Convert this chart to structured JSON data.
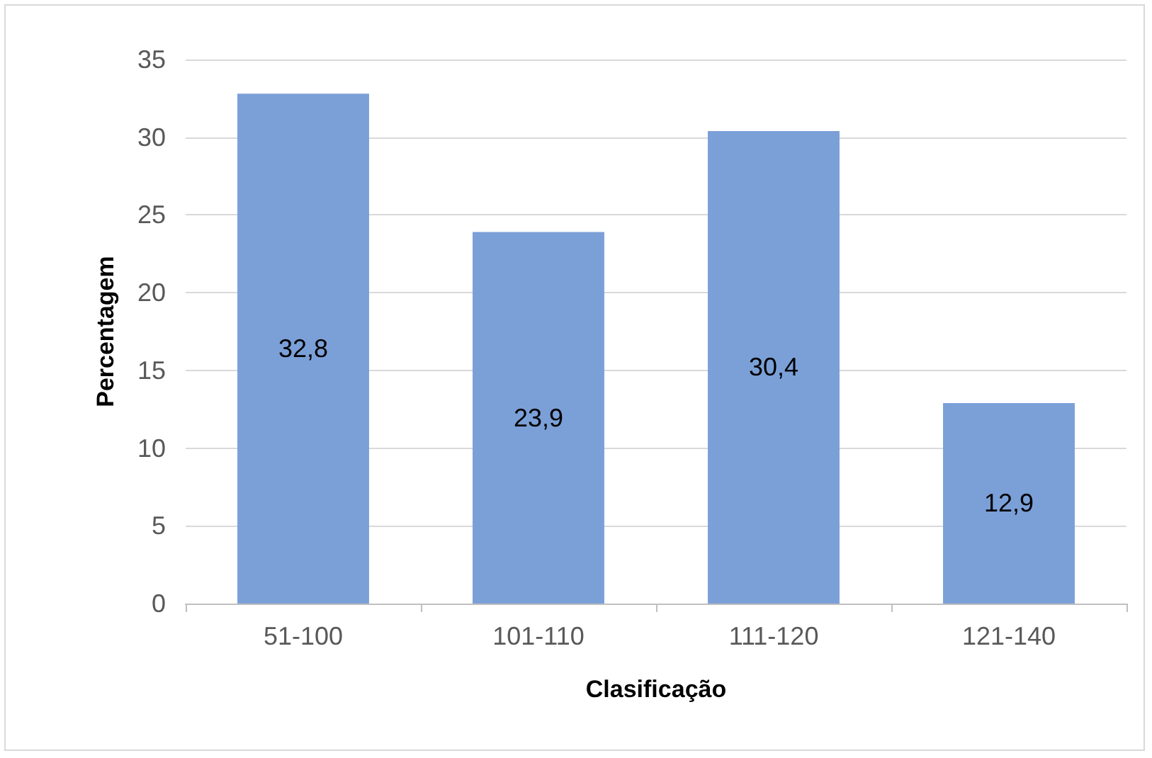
{
  "chart_data": {
    "type": "bar",
    "xlabel": "Clasificação",
    "ylabel": "Percentagem",
    "categories": [
      "51-100",
      "101-110",
      "111-120",
      "121-140"
    ],
    "values": [
      32.8,
      23.9,
      30.4,
      12.9
    ],
    "value_labels": [
      "32,8",
      "23,9",
      "30,4",
      "12,9"
    ],
    "color": "#7ba0d8",
    "ylim": [
      0,
      35
    ],
    "yticks": [
      0,
      5,
      10,
      15,
      20,
      25,
      30,
      35
    ],
    "grid": "y"
  }
}
